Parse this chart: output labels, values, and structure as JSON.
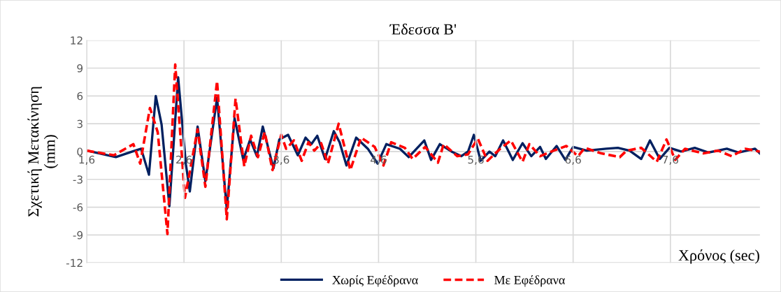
{
  "chart_data": {
    "type": "line",
    "title": "Έδεσσα Β'",
    "xlabel": "Χρόνος (sec)",
    "ylabel": "Σχετική Μετακίνηση\n(mm)",
    "xlim": [
      1.6,
      8.52
    ],
    "ylim": [
      -12,
      12
    ],
    "xticks": [
      {
        "value": 1.6,
        "label": "1,6"
      },
      {
        "value": 2.6,
        "label": "2,6"
      },
      {
        "value": 3.6,
        "label": "3,6"
      },
      {
        "value": 4.6,
        "label": "4,6"
      },
      {
        "value": 5.6,
        "label": "5,6"
      },
      {
        "value": 6.6,
        "label": "6,6"
      },
      {
        "value": 7.6,
        "label": "7,6"
      }
    ],
    "yticks": [
      -12,
      -9,
      -6,
      -3,
      0,
      3,
      6,
      9,
      12
    ],
    "grid": true,
    "legend": "bottom",
    "marker": "none",
    "series": [
      {
        "name": "Χωρίς Εφέδρανα",
        "color": "#002060",
        "line_style": "solid",
        "x": [
          1.6,
          1.9,
          2.07,
          2.16,
          2.24,
          2.31,
          2.37,
          2.45,
          2.54,
          2.62,
          2.66,
          2.74,
          2.82,
          2.94,
          3.04,
          3.12,
          3.21,
          3.28,
          3.35,
          3.41,
          3.52,
          3.58,
          3.67,
          3.77,
          3.85,
          3.91,
          3.97,
          4.05,
          4.14,
          4.2,
          4.27,
          4.37,
          4.49,
          4.59,
          4.68,
          4.82,
          4.91,
          5.07,
          5.14,
          5.23,
          5.35,
          5.45,
          5.52,
          5.58,
          5.65,
          5.74,
          5.8,
          5.88,
          5.98,
          6.08,
          6.17,
          6.26,
          6.32,
          6.43,
          6.52,
          6.6,
          6.74,
          6.94,
          7.06,
          7.18,
          7.3,
          7.39,
          7.49,
          7.59,
          7.71,
          7.85,
          7.99,
          8.18,
          8.3,
          8.47,
          8.52
        ],
        "values": [
          0.1,
          -0.6,
          0,
          0.3,
          -2.5,
          6.0,
          2.9,
          -5.9,
          8.0,
          -1.4,
          -4.3,
          2.7,
          -3.2,
          5.8,
          -6.2,
          3.6,
          -0.9,
          1.3,
          -0.5,
          2.7,
          -1.8,
          1.3,
          1.8,
          -0.4,
          1.5,
          0.8,
          1.7,
          -0.8,
          2.2,
          1.0,
          -1.5,
          1.5,
          0.3,
          -1.3,
          0.8,
          0.3,
          -0.6,
          1.2,
          -0.9,
          0.8,
          0,
          -0.5,
          0,
          1.8,
          -1.0,
          0,
          -0.5,
          1.2,
          -0.9,
          0.9,
          -0.5,
          0.5,
          -0.8,
          0.6,
          -0.9,
          0.5,
          0.1,
          0.3,
          0.4,
          0.1,
          -0.8,
          1.2,
          -0.8,
          0.4,
          0,
          0.4,
          -0.1,
          0.3,
          -0.1,
          0.3,
          -0.2
        ]
      },
      {
        "name": "Με Εφέδρανα",
        "color": "#ff0000",
        "line_style": "dashed",
        "x": [
          1.6,
          1.88,
          2.08,
          2.15,
          2.25,
          2.33,
          2.43,
          2.51,
          2.61,
          2.74,
          2.82,
          2.94,
          3.04,
          3.13,
          3.22,
          3.29,
          3.36,
          3.43,
          3.51,
          3.6,
          3.65,
          3.73,
          3.81,
          3.88,
          3.94,
          4.01,
          4.08,
          4.19,
          4.31,
          4.42,
          4.56,
          4.65,
          4.73,
          4.87,
          4.95,
          5.08,
          5.21,
          5.27,
          5.41,
          5.52,
          5.62,
          5.72,
          5.85,
          5.96,
          6.08,
          6.15,
          6.26,
          6.4,
          6.53,
          6.65,
          6.72,
          6.89,
          7.08,
          7.15,
          7.3,
          7.46,
          7.56,
          7.65,
          7.75,
          7.94,
          8.09,
          8.23,
          8.37,
          8.52
        ],
        "values": [
          0.1,
          -0.4,
          0.8,
          -1.3,
          4.7,
          2.1,
          -8.9,
          9.4,
          -5.0,
          2.4,
          -3.8,
          7.6,
          -7.3,
          5.7,
          -1.6,
          1.7,
          -0.6,
          2.1,
          -2.0,
          1.8,
          0.3,
          1.2,
          -1.0,
          1.0,
          0.1,
          0.9,
          -1.3,
          3.0,
          -2.0,
          1.5,
          0.5,
          -1.5,
          1.0,
          0.4,
          -0.8,
          0.5,
          -1.2,
          0.8,
          -0.5,
          -0.3,
          1.4,
          -1.0,
          0.3,
          1.2,
          -1.1,
          0.8,
          -0.5,
          0.1,
          0.6,
          -0.5,
          0.4,
          -0.2,
          -0.6,
          0.1,
          0.4,
          -1.1,
          1.3,
          -0.9,
          0.3,
          -0.2,
          0.1,
          -0.5,
          0.3,
          0
        ]
      }
    ]
  }
}
